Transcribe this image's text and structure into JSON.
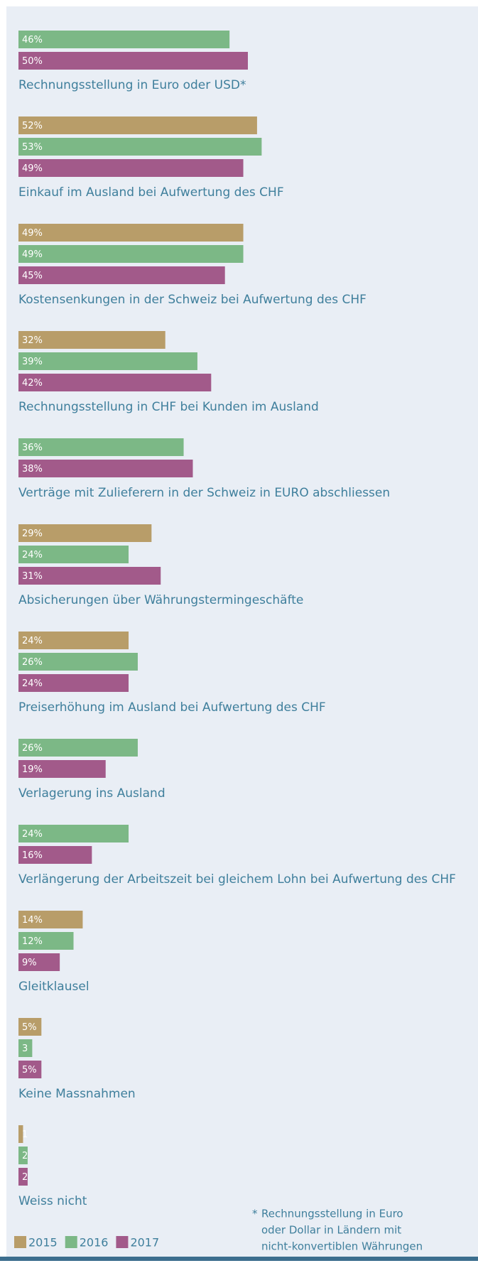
{
  "chart_data": {
    "type": "hbar",
    "categories": [
      "Rechnungsstellung in Euro oder USD*",
      "Einkauf im Ausland bei Aufwertung des CHF",
      "Kostensenkungen in der Schweiz bei Aufwertung des CHF",
      "Rechnungsstellung in CHF bei Kunden im Ausland",
      "Verträge mit Zulieferern in der Schweiz in EURO abschliessen",
      "Absicherungen über Währungstermingeschäfte",
      "Preiserhöhung im Ausland bei Aufwertung des CHF",
      "Verlagerung ins Ausland",
      "Verlängerung der Arbeitszeit bei gleichem Lohn bei Aufwertung des CHF",
      "Gleitklausel",
      "Keine Massnahmen",
      "Weiss nicht"
    ],
    "series": [
      {
        "name": "2015",
        "color": "#b89d69",
        "values": [
          null,
          52,
          49,
          32,
          null,
          29,
          24,
          null,
          null,
          14,
          5,
          1
        ],
        "value_labels": [
          null,
          "52%",
          "49%",
          "32%",
          null,
          "29%",
          "24%",
          null,
          null,
          "14%",
          "5%",
          "1"
        ]
      },
      {
        "name": "2016",
        "color": "#7cb886",
        "values": [
          46,
          53,
          49,
          39,
          36,
          24,
          26,
          26,
          24,
          12,
          3,
          2
        ],
        "value_labels": [
          "46%",
          "53%",
          "49%",
          "39%",
          "36%",
          "24%",
          "26%",
          "26%",
          "24%",
          "12%",
          "3",
          "2"
        ]
      },
      {
        "name": "2017",
        "color": "#a25a8a",
        "values": [
          50,
          49,
          45,
          42,
          38,
          31,
          24,
          19,
          16,
          9,
          5,
          2
        ],
        "value_labels": [
          "50%",
          "49%",
          "45%",
          "42%",
          "38%",
          "31%",
          "24%",
          "19%",
          "16%",
          "9%",
          "5%",
          "2"
        ]
      }
    ],
    "footnote": {
      "marker": "*",
      "lines": [
        "Rechnungsstellung in Euro",
        "oder Dollar in Ländern mit",
        "nicht-konvertiblen Währungen"
      ]
    }
  }
}
